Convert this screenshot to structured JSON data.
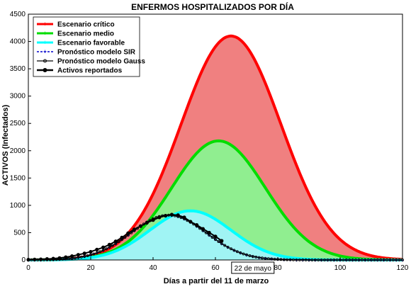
{
  "chart_data": {
    "type": "area",
    "title": "ENFERMOS HOSPITALIZADOS POR DÍA",
    "xlabel": "Días a partir del 11 de marzo",
    "ylabel": "ACTIVOS (Infectados)",
    "xlim": [
      0,
      120
    ],
    "ylim": [
      0,
      4500
    ],
    "x_ticks": [
      0,
      20,
      40,
      60,
      80,
      100,
      120
    ],
    "y_ticks": [
      0,
      500,
      1000,
      1500,
      2000,
      2500,
      3000,
      3500,
      4000,
      4500
    ],
    "grid": false,
    "legend_position": "top-left",
    "series": [
      {
        "name": "Escenario crítico",
        "color": "#ff0000",
        "fill": "#f08080",
        "style": "solid",
        "peak_day": 65,
        "peak_value": 4100,
        "sigma": 16
      },
      {
        "name": "Escenario medio",
        "color": "#00dd00",
        "fill": "#90ee90",
        "style": "solid",
        "peak_day": 61,
        "peak_value": 2180,
        "sigma": 15
      },
      {
        "name": "Escenario favorable",
        "color": "#00ffff",
        "fill": "#a0f4f4",
        "style": "solid",
        "peak_day": 52,
        "peak_value": 900,
        "sigma": 13
      },
      {
        "name": "Pronóstico modelo SIR",
        "color": "#0000cc",
        "style": "dashed",
        "peak_day": 45,
        "peak_value": 820,
        "sigma": 12
      },
      {
        "name": "Pronóstico modelo Gauss",
        "color": "#000000",
        "style": "solid-markers",
        "peak_day": 45,
        "peak_value": 820,
        "sigma": 12
      },
      {
        "name": "Activos reportados",
        "color": "#000000",
        "style": "markers-thick",
        "x": [
          0,
          2,
          4,
          6,
          8,
          10,
          12,
          14,
          16,
          18,
          20,
          22,
          24,
          26,
          28,
          30,
          32,
          34,
          36,
          38,
          40,
          42,
          44,
          46,
          48,
          50,
          52,
          54,
          56,
          58,
          60,
          62
        ],
        "y": [
          5,
          8,
          12,
          18,
          25,
          35,
          50,
          70,
          95,
          120,
          150,
          190,
          230,
          280,
          340,
          410,
          490,
          560,
          620,
          680,
          730,
          780,
          810,
          830,
          820,
          780,
          700,
          640,
          570,
          500,
          430,
          350
        ]
      }
    ],
    "annotation": {
      "text": "22 de mayo",
      "x": 72,
      "y": 0
    }
  }
}
